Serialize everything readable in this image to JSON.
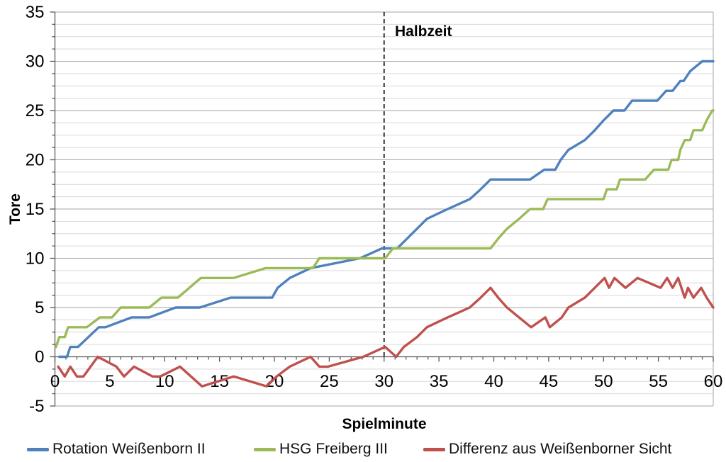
{
  "chart_data": {
    "type": "line",
    "title": "",
    "xlabel": "Spielminute",
    "ylabel": "Tore",
    "xlim": [
      0,
      60
    ],
    "ylim": [
      -5,
      35
    ],
    "x_major_step": 5,
    "x_minor_step": 1,
    "y_major_step": 5,
    "y_minor_step": 1.25,
    "grid": true,
    "legend_position": "bottom",
    "x_tick_values": [
      0,
      5,
      10,
      15,
      20,
      25,
      30,
      35,
      40,
      45,
      50,
      55,
      60
    ],
    "x_tick_labels": [
      "0",
      "5",
      "10",
      "15",
      "20",
      "25",
      "30",
      "35",
      "40",
      "45",
      "50",
      "55",
      "60"
    ],
    "y_tick_values": [
      -5,
      0,
      5,
      10,
      15,
      20,
      25,
      30,
      35
    ],
    "y_tick_labels": [
      "-5",
      "0",
      "5",
      "10",
      "15",
      "20",
      "25",
      "30",
      "35"
    ],
    "annotation": {
      "label": "Halbzeit",
      "x": 30
    },
    "style": {
      "grid_minor": "#D9D9D9",
      "grid_major": "#A6A6A6",
      "axis": "#595959",
      "halftime_line": "#000000",
      "text": "#000000"
    },
    "series": [
      {
        "name": "Rotation Weißenborn II",
        "color": "#4F81BD",
        "points": [
          [
            0.4,
            0
          ],
          [
            1.1,
            0
          ],
          [
            1.4,
            1
          ],
          [
            2.1,
            1
          ],
          [
            4,
            3
          ],
          [
            4.6,
            3
          ],
          [
            7,
            4
          ],
          [
            8.6,
            4
          ],
          [
            11,
            5
          ],
          [
            13.2,
            5
          ],
          [
            16,
            6
          ],
          [
            19.8,
            6
          ],
          [
            20.3,
            7
          ],
          [
            21.4,
            8
          ],
          [
            23.3,
            9
          ],
          [
            27.8,
            10
          ],
          [
            29.8,
            11
          ],
          [
            31.2,
            11
          ],
          [
            33.9,
            14
          ],
          [
            35.8,
            15
          ],
          [
            37.8,
            16
          ],
          [
            38.8,
            17
          ],
          [
            39.7,
            18
          ],
          [
            43.3,
            18
          ],
          [
            44.6,
            19
          ],
          [
            45.6,
            19
          ],
          [
            46.1,
            20
          ],
          [
            46.8,
            21
          ],
          [
            48.3,
            22
          ],
          [
            49.2,
            23
          ],
          [
            50,
            24
          ],
          [
            50.9,
            25
          ],
          [
            51.9,
            25
          ],
          [
            52.6,
            26
          ],
          [
            54.9,
            26
          ],
          [
            55.7,
            27
          ],
          [
            56.3,
            27
          ],
          [
            57,
            28
          ],
          [
            57.3,
            28
          ],
          [
            57.9,
            29
          ],
          [
            59,
            30
          ],
          [
            60,
            30
          ]
        ]
      },
      {
        "name": "HSG Freiberg III",
        "color": "#9BBB59",
        "points": [
          [
            0.1,
            1
          ],
          [
            0.4,
            2
          ],
          [
            0.9,
            2
          ],
          [
            1.2,
            3
          ],
          [
            2.9,
            3
          ],
          [
            4.1,
            4
          ],
          [
            5.2,
            4
          ],
          [
            6,
            5
          ],
          [
            8.6,
            5
          ],
          [
            9.7,
            6
          ],
          [
            11.2,
            6
          ],
          [
            13.3,
            8
          ],
          [
            16.3,
            8
          ],
          [
            19.2,
            9
          ],
          [
            23.5,
            9
          ],
          [
            24.1,
            10
          ],
          [
            30.1,
            10
          ],
          [
            30.8,
            11
          ],
          [
            39.7,
            11
          ],
          [
            40.4,
            12
          ],
          [
            41.2,
            13
          ],
          [
            42.3,
            14
          ],
          [
            43.3,
            15
          ],
          [
            44.5,
            15
          ],
          [
            44.9,
            16
          ],
          [
            50,
            16
          ],
          [
            50.3,
            17
          ],
          [
            51.2,
            17
          ],
          [
            51.5,
            18
          ],
          [
            53.8,
            18
          ],
          [
            54.6,
            19
          ],
          [
            55.9,
            19
          ],
          [
            56.2,
            20
          ],
          [
            56.8,
            20
          ],
          [
            57,
            21
          ],
          [
            57.4,
            22
          ],
          [
            57.9,
            22
          ],
          [
            58.2,
            23
          ],
          [
            59,
            23
          ],
          [
            59.4,
            24
          ],
          [
            59.9,
            25
          ],
          [
            60,
            25
          ]
        ]
      },
      {
        "name": "Differenz aus Weißenborner Sicht",
        "color": "#C0504D",
        "points": [
          [
            0.3,
            -1
          ],
          [
            0.9,
            -2
          ],
          [
            1.4,
            -1
          ],
          [
            2,
            -2
          ],
          [
            2.6,
            -2
          ],
          [
            3.9,
            0
          ],
          [
            5.6,
            -1
          ],
          [
            6.3,
            -2
          ],
          [
            7.2,
            -1
          ],
          [
            8.9,
            -2
          ],
          [
            9.6,
            -2
          ],
          [
            11.4,
            -1
          ],
          [
            13.4,
            -3
          ],
          [
            16.3,
            -2
          ],
          [
            19.3,
            -3
          ],
          [
            20.2,
            -2
          ],
          [
            21.4,
            -1
          ],
          [
            23.3,
            0
          ],
          [
            24.1,
            -1
          ],
          [
            24.9,
            -1
          ],
          [
            28.1,
            0
          ],
          [
            30.1,
            1
          ],
          [
            31.1,
            0
          ],
          [
            31.8,
            1
          ],
          [
            33,
            2
          ],
          [
            33.9,
            3
          ],
          [
            35.8,
            4
          ],
          [
            37.8,
            5
          ],
          [
            38.8,
            6
          ],
          [
            39.7,
            7
          ],
          [
            40.4,
            6
          ],
          [
            41.2,
            5
          ],
          [
            42.3,
            4
          ],
          [
            43.4,
            3
          ],
          [
            44.7,
            4
          ],
          [
            45.1,
            3
          ],
          [
            46.2,
            4
          ],
          [
            46.8,
            5
          ],
          [
            48.3,
            6
          ],
          [
            49.2,
            7
          ],
          [
            50.1,
            8
          ],
          [
            50.5,
            7
          ],
          [
            51,
            8
          ],
          [
            52,
            7
          ],
          [
            53.1,
            8
          ],
          [
            55.2,
            7
          ],
          [
            55.8,
            8
          ],
          [
            56.3,
            7
          ],
          [
            56.8,
            8
          ],
          [
            57.4,
            6
          ],
          [
            57.7,
            7
          ],
          [
            58.2,
            6
          ],
          [
            58.9,
            7
          ],
          [
            59.4,
            6
          ],
          [
            60,
            5
          ]
        ]
      }
    ]
  }
}
